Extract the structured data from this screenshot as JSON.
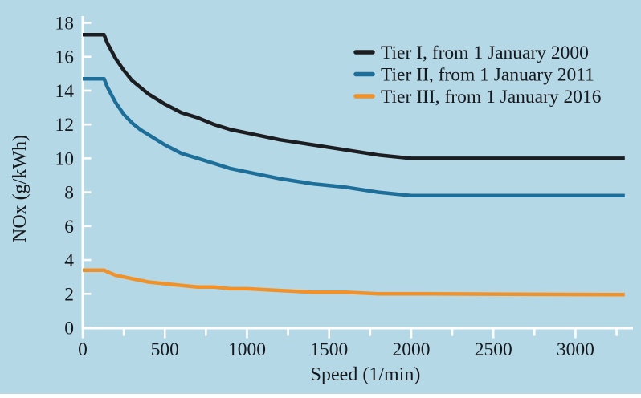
{
  "page": {
    "background_color": "#b5d8e7",
    "axis_color": "#ffffff",
    "text_color": "#16181c"
  },
  "chart_data": {
    "type": "line",
    "title": "",
    "xlabel": "Speed (1/min)",
    "ylabel": "NOx (g/kWh)",
    "xlim": [
      0,
      3350
    ],
    "ylim": [
      0,
      18
    ],
    "x_major_ticks": [
      0,
      500,
      1000,
      1500,
      2000,
      2500,
      3000
    ],
    "x_minor_ticks": [
      250,
      750,
      1250,
      1750,
      2250,
      2750,
      3250
    ],
    "y_ticks": [
      0,
      2,
      4,
      6,
      8,
      10,
      12,
      14,
      16,
      18
    ],
    "grid": false,
    "legend_position": "top-right",
    "x": [
      0,
      130,
      150,
      200,
      250,
      300,
      350,
      400,
      500,
      600,
      700,
      800,
      900,
      1000,
      1200,
      1400,
      1600,
      1800,
      2000,
      2100,
      3300
    ],
    "series": [
      {
        "name": "Tier I, from 1 January 2000",
        "color": "#1b1d21",
        "values": [
          17.3,
          17.3,
          16.8,
          15.9,
          15.2,
          14.6,
          14.2,
          13.8,
          13.2,
          12.7,
          12.4,
          12.0,
          11.7,
          11.5,
          11.1,
          10.8,
          10.5,
          10.2,
          10.0,
          10.0,
          10.0
        ]
      },
      {
        "name": "Tier II, from 1 January 2011",
        "color": "#1d6f99",
        "values": [
          14.7,
          14.7,
          14.2,
          13.3,
          12.6,
          12.1,
          11.7,
          11.4,
          10.8,
          10.3,
          10.0,
          9.7,
          9.4,
          9.2,
          8.8,
          8.5,
          8.3,
          8.0,
          7.8,
          7.8,
          7.8
        ]
      },
      {
        "name": "Tier III, from 1 January 2016",
        "color": "#f0912a",
        "values": [
          3.4,
          3.4,
          3.3,
          3.1,
          3.0,
          2.9,
          2.8,
          2.7,
          2.6,
          2.5,
          2.4,
          2.4,
          2.3,
          2.3,
          2.2,
          2.1,
          2.1,
          2.0,
          2.0,
          2.0,
          1.95
        ]
      }
    ]
  }
}
